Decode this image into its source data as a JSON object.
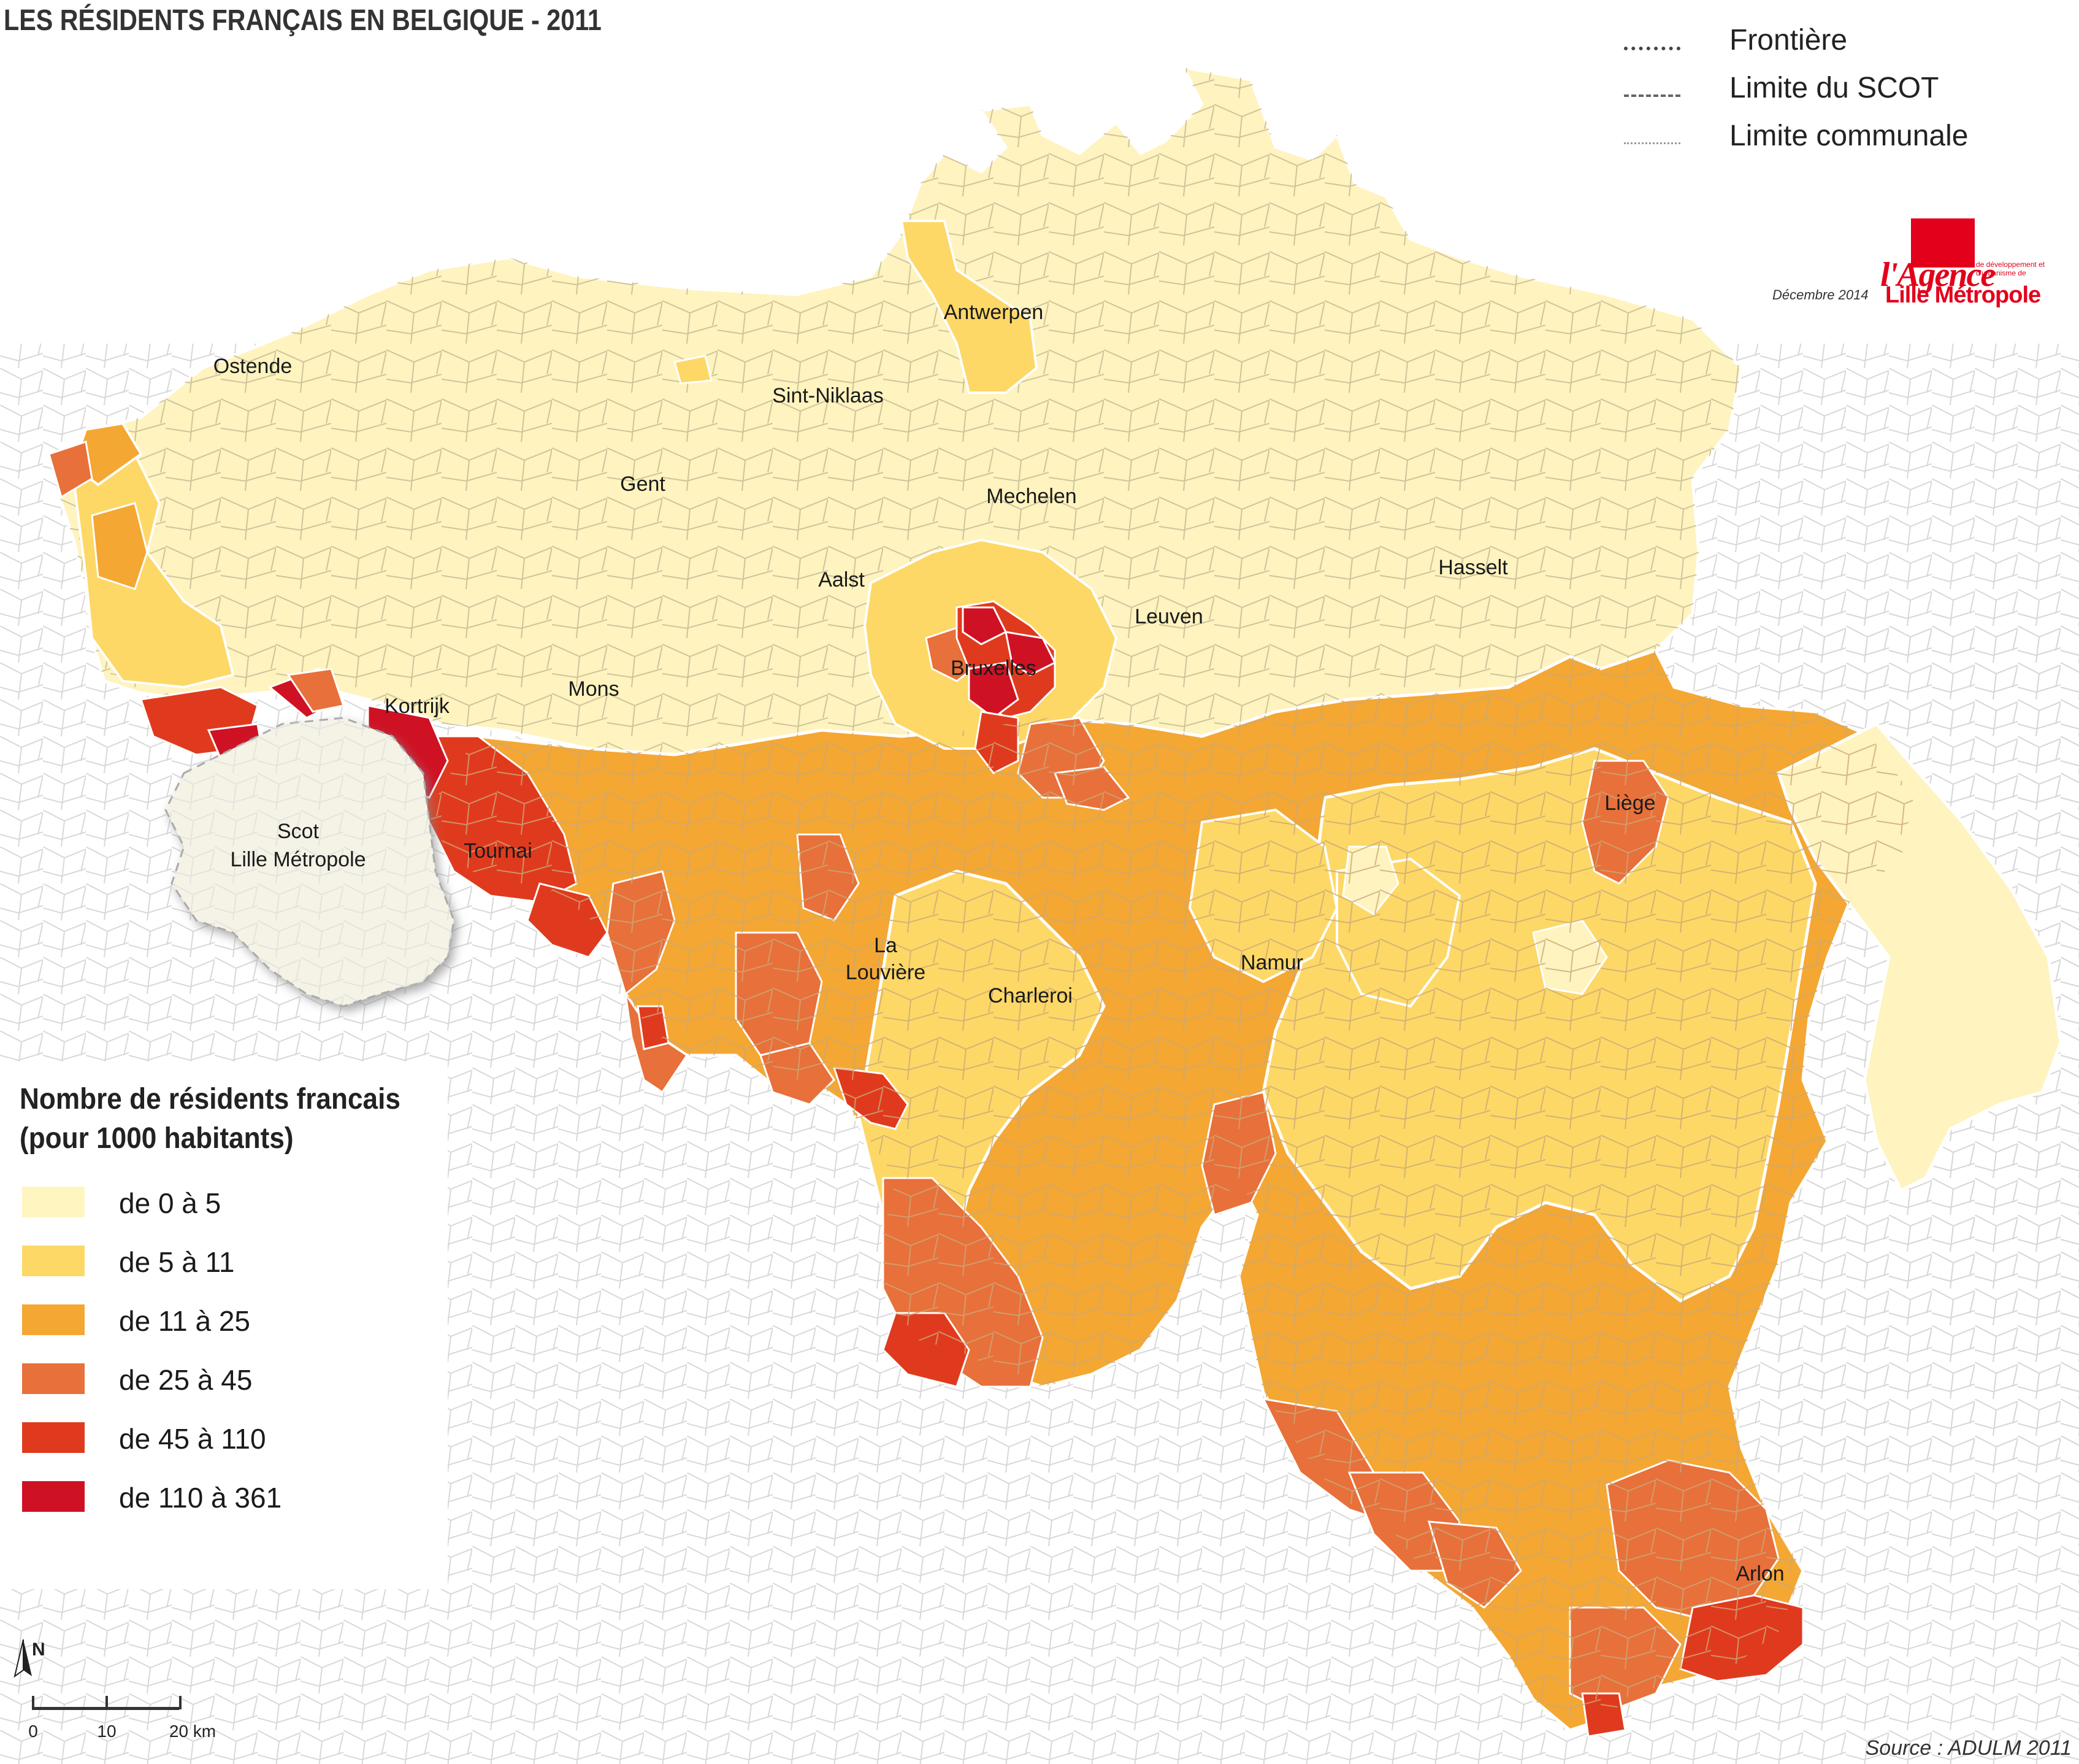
{
  "title": "LES RÉSIDENTS FRANÇAIS EN BELGIQUE - 2011",
  "line_legend": [
    {
      "label": "Frontière",
      "style": "frontiere"
    },
    {
      "label": "Limite du SCOT",
      "style": "scot"
    },
    {
      "label": "Limite communale",
      "style": "commune"
    }
  ],
  "logo": {
    "agence": "l'Agence",
    "subtitle": "de développement et d'urbanisme de",
    "lille": "Lille Métropole"
  },
  "date": "Décembre 2014",
  "cities": [
    {
      "id": "antwerpen",
      "name": "Antwerpen"
    },
    {
      "id": "ostende",
      "name": "Ostende"
    },
    {
      "id": "sint-niklaas",
      "name": "Sint-Niklaas"
    },
    {
      "id": "gent",
      "name": "Gent"
    },
    {
      "id": "mechelen",
      "name": "Mechelen"
    },
    {
      "id": "aalst",
      "name": "Aalst"
    },
    {
      "id": "hasselt",
      "name": "Hasselt"
    },
    {
      "id": "leuven",
      "name": "Leuven"
    },
    {
      "id": "bruxelles",
      "name": "Bruxelles"
    },
    {
      "id": "mons",
      "name": "Mons"
    },
    {
      "id": "kortrijk",
      "name": "Kortrijk"
    },
    {
      "id": "liege",
      "name": "Liège"
    },
    {
      "id": "tournai",
      "name": "Tournai"
    },
    {
      "id": "la-louviere-1",
      "name": "La"
    },
    {
      "id": "la-louviere-2",
      "name": "Louvière"
    },
    {
      "id": "charleroi",
      "name": "Charleroi"
    },
    {
      "id": "namur",
      "name": "Namur"
    },
    {
      "id": "arlon",
      "name": "Arlon"
    }
  ],
  "scot": {
    "line1": "Scot",
    "line2": "Lille Métropole"
  },
  "legend": {
    "title_line1": "Nombre de résidents francais",
    "title_line2": "(pour 1000 habitants)",
    "classes": [
      {
        "label": "de 0 à 5",
        "color": "#fff5c0"
      },
      {
        "label": "de 5 à 11",
        "color": "#fdd866"
      },
      {
        "label": "de 11 à 25",
        "color": "#f4a733"
      },
      {
        "label": "de 25 à 45",
        "color": "#e8703a"
      },
      {
        "label": "de 45 à 110",
        "color": "#e03a1e"
      },
      {
        "label": "de 110 à 361",
        "color": "#cf1124"
      }
    ]
  },
  "north_label": "N",
  "scale": {
    "ticks": [
      "0",
      "10",
      "20 km"
    ]
  },
  "source": "Source : ADULM 2011"
}
